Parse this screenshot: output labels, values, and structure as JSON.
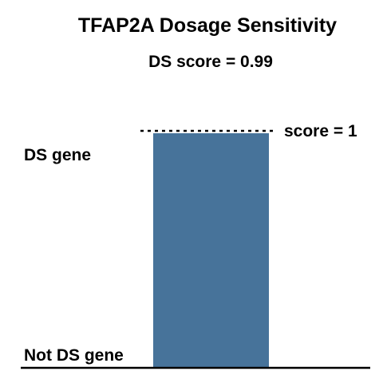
{
  "chart_data": {
    "type": "bar",
    "title": "TFAP2A Dosage Sensitivity",
    "subtitle": "DS score = 0.99",
    "categories": [
      ""
    ],
    "values": [
      0.99
    ],
    "ylim": [
      0,
      1
    ],
    "y_labels": {
      "top": "DS gene",
      "bottom": "Not DS gene"
    },
    "reference_line": {
      "value": 1,
      "label": "score = 1",
      "style": "dotted"
    },
    "bar_color": "#47739a",
    "legend": "none",
    "grid": false
  }
}
